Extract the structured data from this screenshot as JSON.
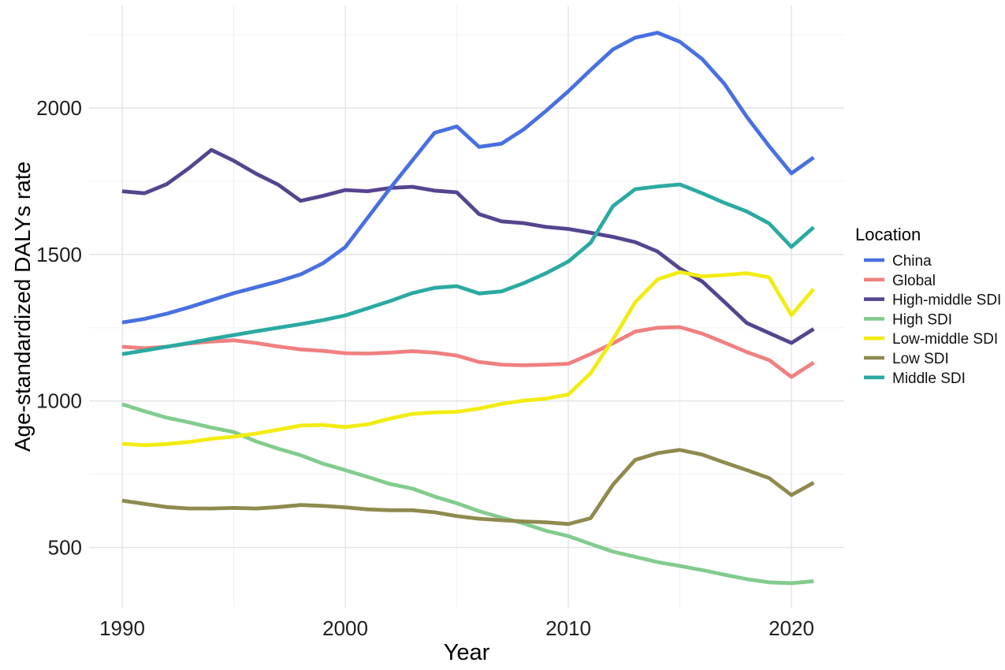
{
  "figure": {
    "xlabel": "Year",
    "ylabel": "Age-standardized DALYs rate",
    "legend_title": "Location"
  },
  "chart_data": {
    "type": "line",
    "title": "",
    "xlabel": "Year",
    "ylabel": "Age-standardized DALYs rate",
    "legend_title": "Location",
    "legend_position": "right",
    "grid": true,
    "background": "#FFFFFF",
    "x_ticks": [
      1990,
      2000,
      2010,
      2020
    ],
    "y_ticks": [
      500,
      1000,
      1500,
      2000
    ],
    "xlim": [
      1988.5,
      2022.4
    ],
    "ylim": [
      280,
      2350
    ],
    "x": [
      1990,
      1991,
      1992,
      1993,
      1994,
      1995,
      1996,
      1997,
      1998,
      1999,
      2000,
      2001,
      2002,
      2003,
      2004,
      2005,
      2006,
      2007,
      2008,
      2009,
      2010,
      2011,
      2012,
      2013,
      2014,
      2015,
      2016,
      2017,
      2018,
      2019,
      2020,
      2021
    ],
    "series": [
      {
        "name": "China",
        "color": "#4870E0",
        "values": [
          1268,
          1280,
          1298,
          1320,
          1344,
          1368,
          1388,
          1408,
          1432,
          1470,
          1525,
          1625,
          1725,
          1820,
          1915,
          1937,
          1867,
          1878,
          1927,
          1990,
          2057,
          2130,
          2200,
          2240,
          2257,
          2226,
          2167,
          2082,
          1970,
          1870,
          1777,
          1831
        ]
      },
      {
        "name": "Global",
        "color": "#F08080",
        "values": [
          1185,
          1180,
          1185,
          1196,
          1203,
          1207,
          1198,
          1186,
          1176,
          1171,
          1163,
          1162,
          1165,
          1170,
          1165,
          1155,
          1133,
          1124,
          1122,
          1124,
          1127,
          1160,
          1197,
          1237,
          1250,
          1252,
          1230,
          1199,
          1167,
          1140,
          1082,
          1131
        ]
      },
      {
        "name": "High-middle SDI",
        "color": "#55458F",
        "values": [
          1716,
          1709,
          1740,
          1795,
          1857,
          1820,
          1776,
          1738,
          1683,
          1700,
          1720,
          1716,
          1727,
          1731,
          1718,
          1712,
          1638,
          1613,
          1607,
          1594,
          1587,
          1574,
          1560,
          1542,
          1510,
          1452,
          1408,
          1338,
          1266,
          1232,
          1198,
          1246
        ]
      },
      {
        "name": "High SDI",
        "color": "#82CC8E",
        "values": [
          989,
          965,
          943,
          927,
          909,
          894,
          862,
          837,
          815,
          786,
          764,
          741,
          717,
          701,
          674,
          651,
          624,
          602,
          582,
          557,
          539,
          512,
          486,
          468,
          450,
          437,
          423,
          407,
          392,
          381,
          378,
          385
        ]
      },
      {
        "name": "Low-middle SDI",
        "color": "#F2EC13",
        "values": [
          854,
          849,
          853,
          860,
          871,
          878,
          889,
          902,
          916,
          918,
          911,
          920,
          940,
          956,
          961,
          963,
          974,
          990,
          1001,
          1008,
          1022,
          1095,
          1210,
          1337,
          1415,
          1440,
          1425,
          1430,
          1436,
          1422,
          1293,
          1382
        ]
      },
      {
        "name": "Low SDI",
        "color": "#8F8A4E",
        "values": [
          660,
          649,
          638,
          633,
          633,
          635,
          633,
          638,
          645,
          642,
          637,
          630,
          627,
          627,
          620,
          607,
          598,
          593,
          589,
          586,
          580,
          600,
          714,
          799,
          822,
          833,
          817,
          790,
          764,
          737,
          679,
          721
        ]
      },
      {
        "name": "Middle SDI",
        "color": "#2AAAA2",
        "values": [
          1160,
          1172,
          1185,
          1198,
          1212,
          1225,
          1238,
          1250,
          1262,
          1276,
          1292,
          1316,
          1341,
          1368,
          1386,
          1392,
          1367,
          1374,
          1402,
          1436,
          1476,
          1540,
          1665,
          1723,
          1732,
          1739,
          1709,
          1676,
          1647,
          1606,
          1526,
          1593
        ]
      }
    ]
  }
}
